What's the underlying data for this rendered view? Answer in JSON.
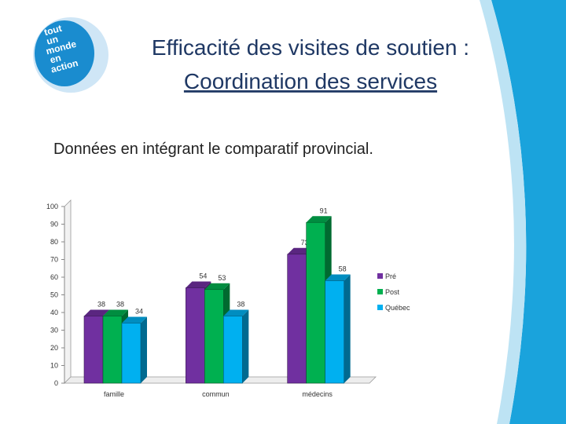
{
  "header": {
    "title_line1": "Efficacité des visites de soutien :",
    "title_line2": "Coordination des services",
    "subtitle": "Données en intégrant le comparatif provincial."
  },
  "logo": [
    "tout",
    "un",
    "monde",
    "en",
    "action"
  ],
  "chart_data": {
    "type": "bar",
    "categories": [
      "famille",
      "commun",
      "médecins"
    ],
    "series": [
      {
        "name": "Pré",
        "color": "#7030a0",
        "values": [
          38,
          54,
          73
        ]
      },
      {
        "name": "Post",
        "color": "#00b050",
        "values": [
          38,
          53,
          91
        ]
      },
      {
        "name": "Québec",
        "color": "#00b0f0",
        "values": [
          34,
          38,
          58
        ]
      }
    ],
    "ylim": [
      0,
      100
    ],
    "yticks": [
      0,
      10,
      20,
      30,
      40,
      50,
      60,
      70,
      80,
      90,
      100
    ],
    "legend": "right"
  }
}
